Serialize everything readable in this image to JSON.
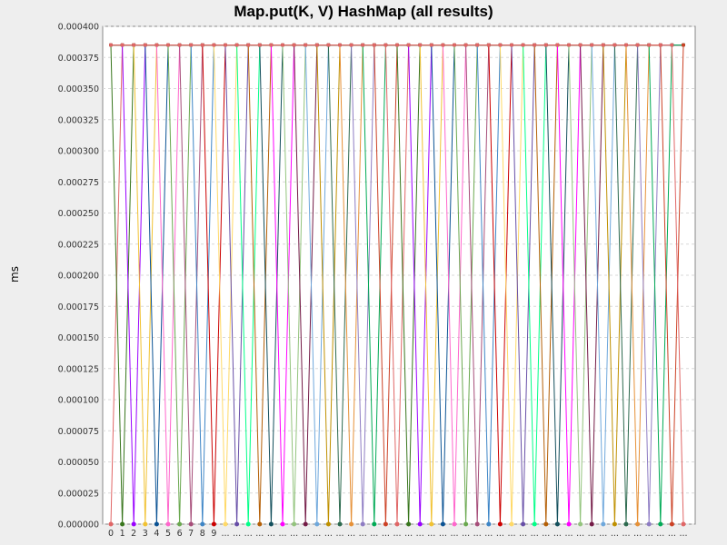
{
  "chart_data": {
    "type": "line",
    "title": "Map.put(K, V) HashMap (all results)",
    "xlabel": "",
    "ylabel": "ms",
    "ylim": [
      0.0,
      0.0004
    ],
    "grid": true,
    "yticks": [
      "0.000000",
      "0.000025",
      "0.000050",
      "0.000075",
      "0.000100",
      "0.000125",
      "0.000150",
      "0.000175",
      "0.000200",
      "0.000225",
      "0.000250",
      "0.000275",
      "0.000300",
      "0.000325",
      "0.000350",
      "0.000375",
      "0.000400"
    ],
    "x_tick_labels": [
      "0",
      "1",
      "2",
      "3",
      "4",
      "5",
      "6",
      "7",
      "8",
      "9",
      "...",
      "...",
      "...",
      "...",
      "...",
      "...",
      "...",
      "...",
      "...",
      "...",
      "...",
      "...",
      "...",
      "...",
      "...",
      "...",
      "...",
      "...",
      "...",
      "...",
      "...",
      "...",
      "...",
      "...",
      "...",
      "...",
      "...",
      "...",
      "...",
      "...",
      "...",
      "...",
      "...",
      "...",
      "...",
      "...",
      "...",
      "...",
      "...",
      "...",
      "..."
    ],
    "series_count": 51,
    "value_levels": [
      0.0,
      0.000385
    ],
    "note_pattern": "each series jumps between 0 and 0.000385 at its own category"
  },
  "colors": {
    "series": [
      "#e06666",
      "#38761d",
      "#9900ff",
      "#f1c232",
      "#0b5394",
      "#ff66cc",
      "#6aa84f",
      "#a64d79",
      "#3d85c6",
      "#cc0000",
      "#ffd966",
      "#674ea7",
      "#00ff88",
      "#b45f06",
      "#134f5c",
      "#ff00ff",
      "#93c47d",
      "#741b47",
      "#6fa8dc",
      "#bf9000",
      "#2d6a4f",
      "#e69138",
      "#8e7cc3",
      "#00aa55",
      "#cc4125"
    ]
  }
}
